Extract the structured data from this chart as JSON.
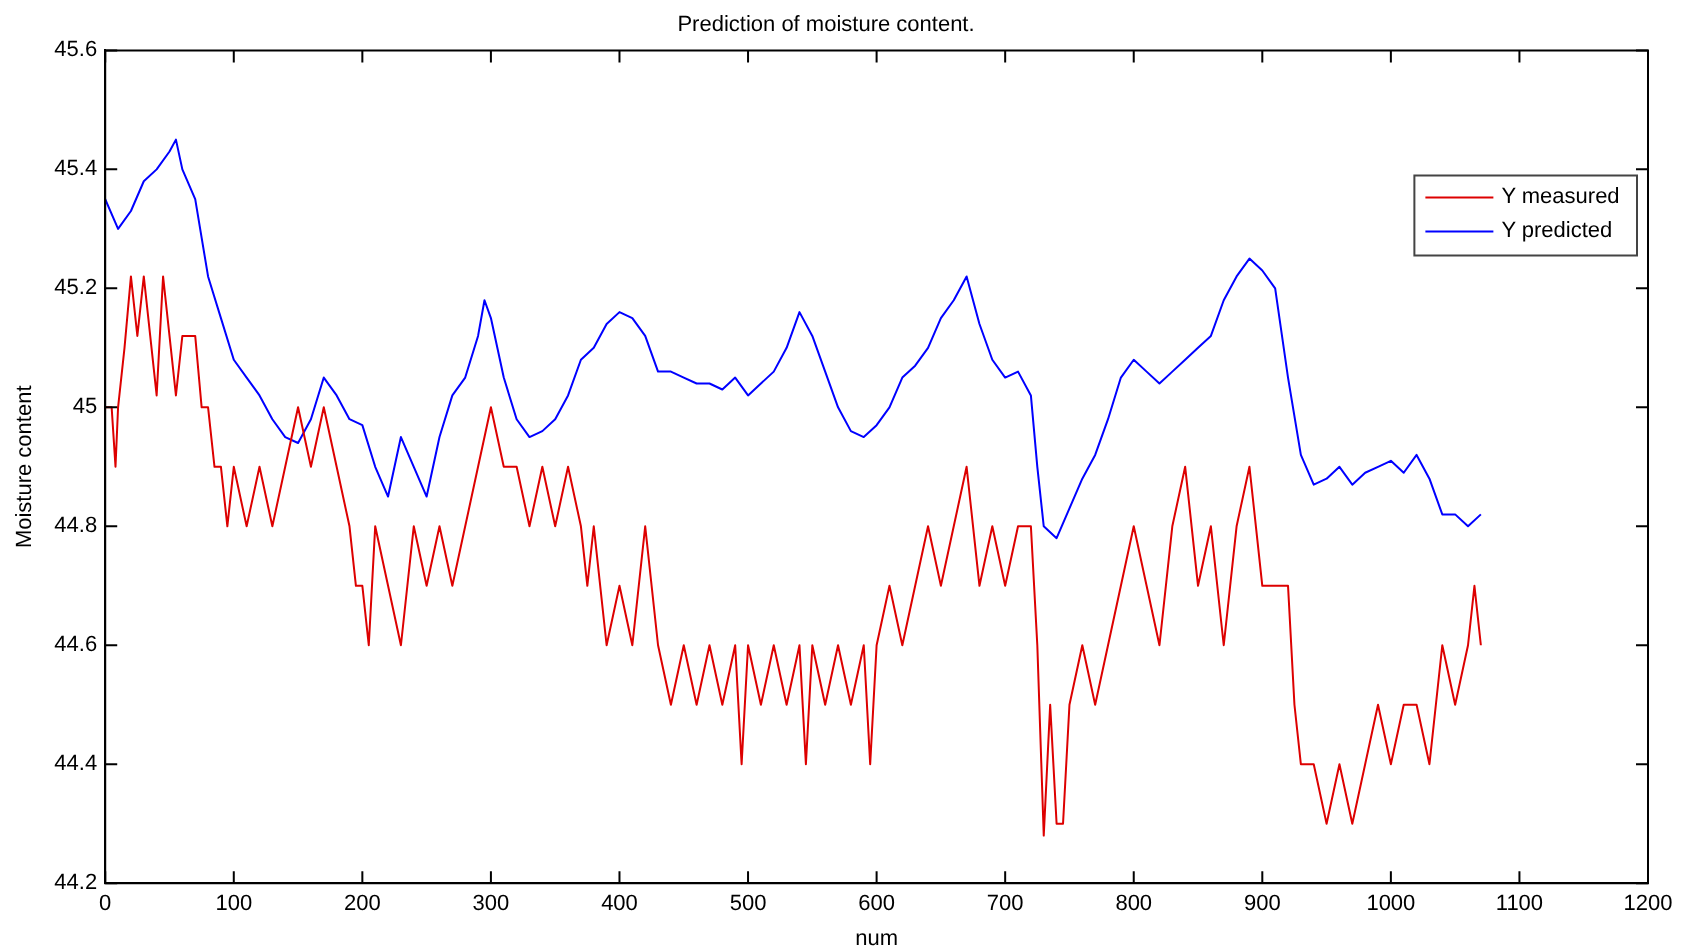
{
  "chart_data": {
    "type": "line",
    "title": "Prediction of moisture content.",
    "xlabel": "num",
    "ylabel": "Moisture content",
    "xlim": [
      0,
      1200
    ],
    "xticks": [
      0,
      100,
      200,
      300,
      400,
      500,
      600,
      700,
      800,
      900,
      1000,
      1100,
      1200
    ],
    "ylim": [
      44.2,
      45.6
    ],
    "yticks": [
      44.2,
      44.4,
      44.6,
      44.8,
      45,
      45.2,
      45.4,
      45.6
    ],
    "grid": false,
    "legend": "top right",
    "marker": "none",
    "line_style": "solid",
    "series": [
      {
        "name": "Y measured",
        "color": "#dd0000",
        "x": [
          0,
          5,
          8,
          10,
          15,
          20,
          25,
          30,
          35,
          40,
          45,
          50,
          55,
          60,
          70,
          75,
          80,
          85,
          90,
          95,
          100,
          110,
          120,
          130,
          140,
          150,
          160,
          170,
          180,
          190,
          195,
          200,
          205,
          210,
          220,
          230,
          240,
          250,
          260,
          270,
          280,
          290,
          300,
          310,
          320,
          330,
          340,
          350,
          360,
          370,
          375,
          380,
          390,
          400,
          410,
          420,
          430,
          440,
          450,
          460,
          470,
          480,
          490,
          495,
          500,
          510,
          520,
          530,
          540,
          545,
          550,
          560,
          570,
          580,
          590,
          595,
          600,
          610,
          620,
          630,
          640,
          650,
          660,
          670,
          680,
          690,
          700,
          710,
          720,
          725,
          730,
          735,
          740,
          745,
          750,
          760,
          770,
          780,
          790,
          800,
          810,
          820,
          830,
          840,
          850,
          860,
          870,
          880,
          890,
          900,
          910,
          920,
          925,
          930,
          940,
          950,
          960,
          970,
          980,
          990,
          1000,
          1010,
          1020,
          1030,
          1040,
          1050,
          1060,
          1065,
          1070
        ],
        "values": [
          45.0,
          45.0,
          44.9,
          45.0,
          45.1,
          45.22,
          45.12,
          45.22,
          45.12,
          45.02,
          45.22,
          45.12,
          45.02,
          45.12,
          45.12,
          45.0,
          45.0,
          44.9,
          44.9,
          44.8,
          44.9,
          44.8,
          44.9,
          44.8,
          44.9,
          45.0,
          44.9,
          45.0,
          44.9,
          44.8,
          44.7,
          44.7,
          44.6,
          44.8,
          44.7,
          44.6,
          44.8,
          44.7,
          44.8,
          44.7,
          44.8,
          44.9,
          45.0,
          44.9,
          44.9,
          44.8,
          44.9,
          44.8,
          44.9,
          44.8,
          44.7,
          44.8,
          44.6,
          44.7,
          44.6,
          44.8,
          44.6,
          44.5,
          44.6,
          44.5,
          44.6,
          44.5,
          44.6,
          44.4,
          44.6,
          44.5,
          44.6,
          44.5,
          44.6,
          44.4,
          44.6,
          44.5,
          44.6,
          44.5,
          44.6,
          44.4,
          44.6,
          44.7,
          44.6,
          44.7,
          44.8,
          44.7,
          44.8,
          44.9,
          44.7,
          44.8,
          44.7,
          44.8,
          44.8,
          44.6,
          44.28,
          44.5,
          44.3,
          44.3,
          44.5,
          44.6,
          44.5,
          44.6,
          44.7,
          44.8,
          44.7,
          44.6,
          44.8,
          44.9,
          44.7,
          44.8,
          44.6,
          44.8,
          44.9,
          44.7,
          44.7,
          44.7,
          44.5,
          44.4,
          44.4,
          44.3,
          44.4,
          44.3,
          44.4,
          44.5,
          44.4,
          44.5,
          44.5,
          44.4,
          44.6,
          44.5,
          44.6,
          44.7,
          44.6
        ]
      },
      {
        "name": "Y predicted",
        "color": "#0000ff",
        "x": [
          0,
          10,
          20,
          30,
          40,
          50,
          55,
          60,
          70,
          80,
          90,
          100,
          110,
          120,
          130,
          140,
          150,
          160,
          170,
          180,
          190,
          200,
          210,
          220,
          230,
          240,
          250,
          260,
          270,
          280,
          290,
          295,
          300,
          310,
          320,
          330,
          340,
          350,
          360,
          370,
          380,
          390,
          400,
          410,
          420,
          430,
          440,
          450,
          460,
          470,
          480,
          490,
          500,
          510,
          520,
          530,
          540,
          550,
          560,
          570,
          580,
          590,
          600,
          610,
          620,
          630,
          640,
          650,
          660,
          670,
          680,
          690,
          700,
          710,
          720,
          725,
          730,
          740,
          750,
          760,
          770,
          780,
          790,
          800,
          810,
          820,
          830,
          840,
          850,
          860,
          870,
          880,
          890,
          900,
          910,
          920,
          930,
          940,
          950,
          960,
          970,
          980,
          990,
          1000,
          1010,
          1020,
          1030,
          1040,
          1050,
          1060,
          1070
        ],
        "values": [
          45.35,
          45.3,
          45.33,
          45.38,
          45.4,
          45.43,
          45.45,
          45.4,
          45.35,
          45.22,
          45.15,
          45.08,
          45.05,
          45.02,
          44.98,
          44.95,
          44.94,
          44.98,
          45.05,
          45.02,
          44.98,
          44.97,
          44.9,
          44.85,
          44.95,
          44.9,
          44.85,
          44.95,
          45.02,
          45.05,
          45.12,
          45.18,
          45.15,
          45.05,
          44.98,
          44.95,
          44.96,
          44.98,
          45.02,
          45.08,
          45.1,
          45.14,
          45.16,
          45.15,
          45.12,
          45.06,
          45.06,
          45.05,
          45.04,
          45.04,
          45.03,
          45.05,
          45.02,
          45.04,
          45.06,
          45.1,
          45.16,
          45.12,
          45.06,
          45.0,
          44.96,
          44.95,
          44.97,
          45.0,
          45.05,
          45.07,
          45.1,
          45.15,
          45.18,
          45.22,
          45.14,
          45.08,
          45.05,
          45.06,
          45.02,
          44.9,
          44.8,
          44.78,
          44.83,
          44.88,
          44.92,
          44.98,
          45.05,
          45.08,
          45.06,
          45.04,
          45.06,
          45.08,
          45.1,
          45.12,
          45.18,
          45.22,
          45.25,
          45.23,
          45.2,
          45.05,
          44.92,
          44.87,
          44.88,
          44.9,
          44.87,
          44.89,
          44.9,
          44.91,
          44.89,
          44.92,
          44.88,
          44.82,
          44.82,
          44.8,
          44.82
        ]
      }
    ]
  }
}
